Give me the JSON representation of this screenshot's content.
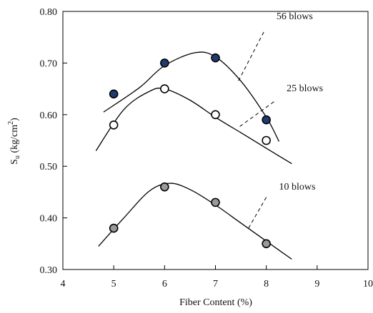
{
  "chart_data": {
    "type": "scatter",
    "title": "",
    "xlabel": "Fiber Content (%)",
    "ylabel_main": "S",
    "ylabel_sub": "u",
    "ylabel_rest": " (kg/cm",
    "ylabel_sup": "2",
    "ylabel_end": ")",
    "xlim": [
      4,
      10
    ],
    "ylim": [
      0.3,
      0.8
    ],
    "xticks": [
      4,
      5,
      6,
      7,
      8,
      9,
      10
    ],
    "yticks": [
      0.3,
      0.4,
      0.5,
      0.6,
      0.7,
      0.8
    ],
    "xtick_labels": [
      "4",
      "5",
      "6",
      "7",
      "8",
      "9",
      "10"
    ],
    "ytick_labels": [
      "0.30",
      "0.40",
      "0.50",
      "0.60",
      "0.70",
      "0.80"
    ],
    "grid": false,
    "legend": "none",
    "series": [
      {
        "name": "56 blows",
        "marker_fill": "#1f3b73",
        "x": [
          5,
          6,
          7,
          8
        ],
        "y": [
          0.64,
          0.7,
          0.71,
          0.59
        ],
        "curve": [
          [
            4.8,
            0.605
          ],
          [
            5.5,
            0.652
          ],
          [
            6.0,
            0.695
          ],
          [
            6.6,
            0.72
          ],
          [
            7.0,
            0.712
          ],
          [
            7.5,
            0.665
          ],
          [
            8.0,
            0.595
          ],
          [
            8.25,
            0.548
          ]
        ]
      },
      {
        "name": "25 blows",
        "marker_fill": "#ffffff",
        "x": [
          5,
          6,
          7,
          8
        ],
        "y": [
          0.58,
          0.65,
          0.6,
          0.55
        ],
        "curve": [
          [
            4.65,
            0.53
          ],
          [
            5.2,
            0.61
          ],
          [
            5.7,
            0.645
          ],
          [
            6.0,
            0.65
          ],
          [
            6.5,
            0.628
          ],
          [
            7.0,
            0.595
          ],
          [
            7.5,
            0.565
          ],
          [
            8.0,
            0.535
          ],
          [
            8.5,
            0.505
          ]
        ]
      },
      {
        "name": "10 blows",
        "marker_fill": "#9a9a9a",
        "x": [
          5,
          6,
          7,
          8
        ],
        "y": [
          0.38,
          0.46,
          0.43,
          0.35
        ],
        "curve": [
          [
            4.7,
            0.345
          ],
          [
            5.2,
            0.4
          ],
          [
            5.7,
            0.452
          ],
          [
            6.1,
            0.467
          ],
          [
            6.5,
            0.455
          ],
          [
            7.0,
            0.425
          ],
          [
            7.5,
            0.39
          ],
          [
            8.0,
            0.355
          ],
          [
            8.5,
            0.32
          ]
        ]
      }
    ],
    "annotations": [
      {
        "text": "56 blows",
        "series": 0,
        "at": [
          8.2,
          0.785
        ],
        "leader_from": [
          7.95,
          0.76
        ],
        "leader_to": [
          7.45,
          0.665
        ]
      },
      {
        "text": "25 blows",
        "series": 1,
        "at": [
          8.4,
          0.645
        ],
        "leader_from": [
          8.15,
          0.625
        ],
        "leader_to": [
          7.45,
          0.575
        ]
      },
      {
        "text": "10 blows",
        "series": 2,
        "at": [
          8.25,
          0.455
        ],
        "leader_from": [
          8.0,
          0.44
        ],
        "leader_to": [
          7.65,
          0.38
        ]
      }
    ]
  }
}
